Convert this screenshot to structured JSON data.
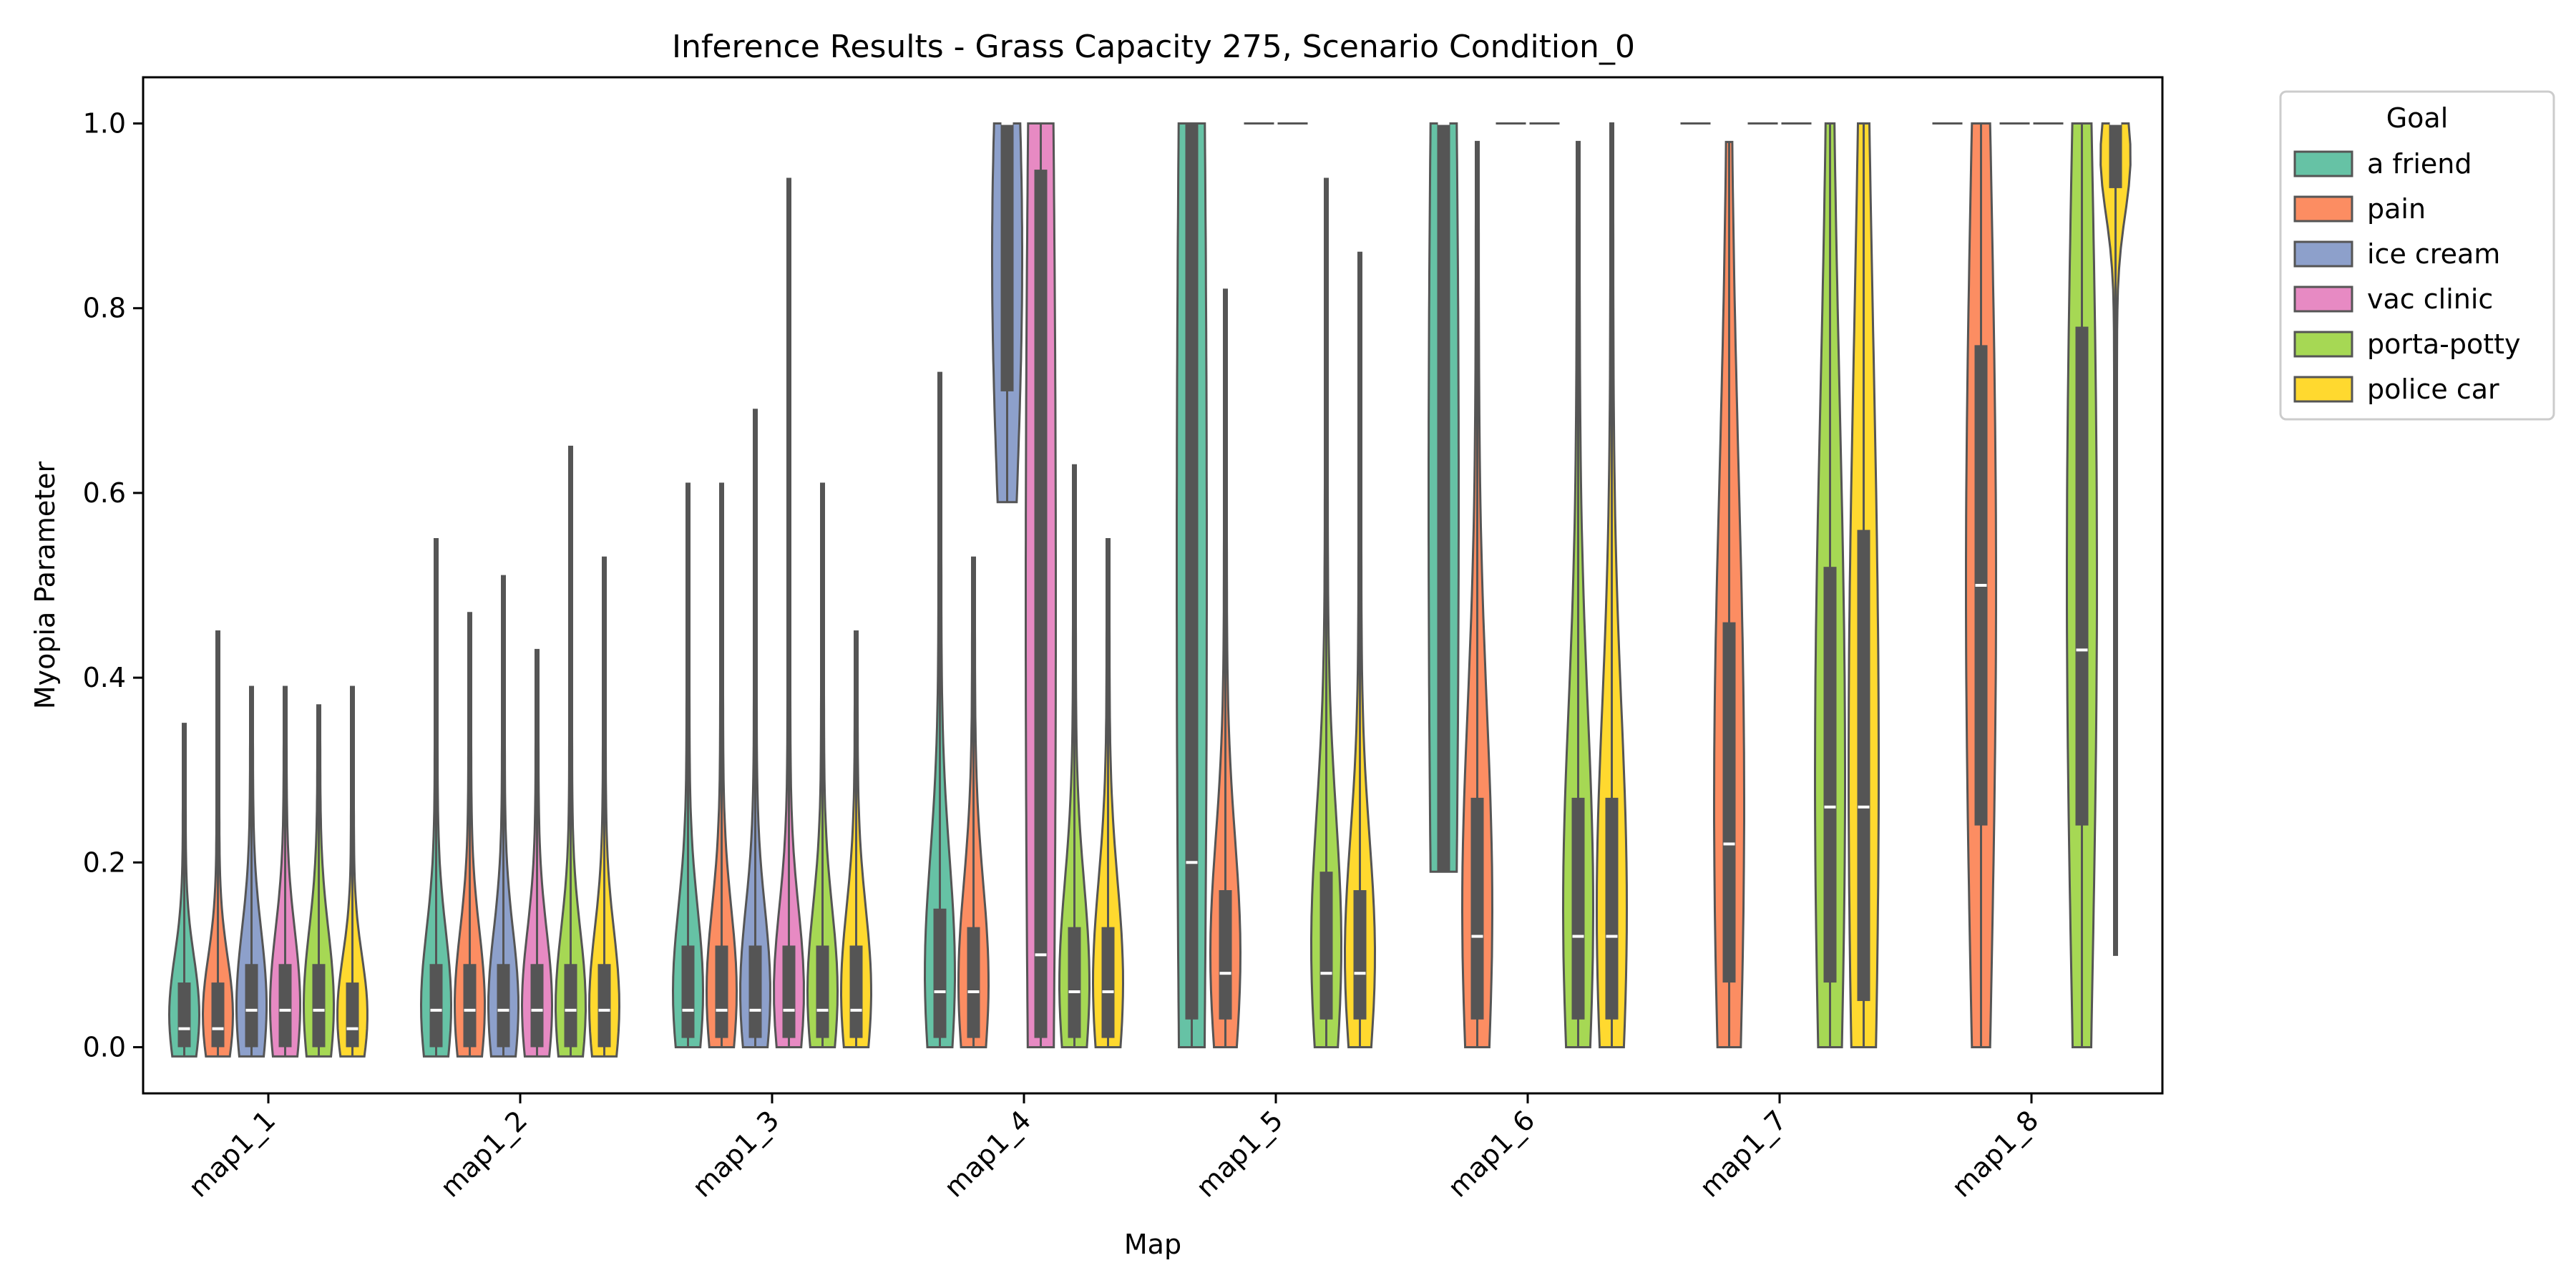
{
  "chart_data": {
    "type": "violin",
    "title": "Inference Results - Grass Capacity 275, Scenario Condition_0",
    "xlabel": "Map",
    "ylabel": "Myopia Parameter",
    "ylim": [
      -0.05,
      1.05
    ],
    "yticks": [
      0.0,
      0.2,
      0.4,
      0.6,
      0.8,
      1.0
    ],
    "yticks_labels": [
      "0.0",
      "0.2",
      "0.4",
      "0.6",
      "0.8",
      "1.0"
    ],
    "categories": [
      "map1_1",
      "map1_2",
      "map1_3",
      "map1_4",
      "map1_5",
      "map1_6",
      "map1_7",
      "map1_8"
    ],
    "legend": {
      "title": "Goal",
      "placement": "outside-right-top",
      "entries": [
        {
          "name": "a friend",
          "color": "#66c2a5"
        },
        {
          "name": "pain",
          "color": "#fc8d62"
        },
        {
          "name": "ice cream",
          "color": "#8da0cb"
        },
        {
          "name": "vac clinic",
          "color": "#e78ac3"
        },
        {
          "name": "porta-potty",
          "color": "#a6d854"
        },
        {
          "name": "police car",
          "color": "#ffd92f"
        }
      ]
    },
    "grid": false,
    "violins": [
      [
        {
          "min": -0.01,
          "q1": 0.0,
          "median": 0.02,
          "q3": 0.07,
          "max": 0.35
        },
        {
          "min": -0.01,
          "q1": 0.0,
          "median": 0.02,
          "q3": 0.07,
          "max": 0.45
        },
        {
          "min": -0.01,
          "q1": 0.0,
          "median": 0.04,
          "q3": 0.09,
          "max": 0.39
        },
        {
          "min": -0.01,
          "q1": 0.0,
          "median": 0.04,
          "q3": 0.09,
          "max": 0.39
        },
        {
          "min": -0.01,
          "q1": 0.0,
          "median": 0.04,
          "q3": 0.09,
          "max": 0.37
        },
        {
          "min": -0.01,
          "q1": 0.0,
          "median": 0.02,
          "q3": 0.07,
          "max": 0.39
        }
      ],
      [
        {
          "min": -0.01,
          "q1": 0.0,
          "median": 0.04,
          "q3": 0.09,
          "max": 0.55
        },
        {
          "min": -0.01,
          "q1": 0.0,
          "median": 0.04,
          "q3": 0.09,
          "max": 0.47
        },
        {
          "min": -0.01,
          "q1": 0.0,
          "median": 0.04,
          "q3": 0.09,
          "max": 0.51
        },
        {
          "min": -0.01,
          "q1": 0.0,
          "median": 0.04,
          "q3": 0.09,
          "max": 0.43
        },
        {
          "min": -0.01,
          "q1": 0.0,
          "median": 0.04,
          "q3": 0.09,
          "max": 0.65
        },
        {
          "min": -0.01,
          "q1": 0.0,
          "median": 0.04,
          "q3": 0.09,
          "max": 0.53
        }
      ],
      [
        {
          "min": 0.0,
          "q1": 0.01,
          "median": 0.04,
          "q3": 0.11,
          "max": 0.61
        },
        {
          "min": 0.0,
          "q1": 0.01,
          "median": 0.04,
          "q3": 0.11,
          "max": 0.61
        },
        {
          "min": 0.0,
          "q1": 0.01,
          "median": 0.04,
          "q3": 0.11,
          "max": 0.69
        },
        {
          "min": 0.0,
          "q1": 0.01,
          "median": 0.04,
          "q3": 0.11,
          "max": 0.94
        },
        {
          "min": 0.0,
          "q1": 0.01,
          "median": 0.04,
          "q3": 0.11,
          "max": 0.61
        },
        {
          "min": 0.0,
          "q1": 0.01,
          "median": 0.04,
          "q3": 0.11,
          "max": 0.45
        }
      ],
      [
        {
          "min": 0.0,
          "q1": 0.01,
          "median": 0.06,
          "q3": 0.15,
          "max": 0.73
        },
        {
          "min": 0.0,
          "q1": 0.01,
          "median": 0.06,
          "q3": 0.13,
          "max": 0.53
        },
        {
          "min": 0.59,
          "q1": 0.71,
          "median": 1.0,
          "q3": 1.0,
          "max": 1.0
        },
        {
          "min": 0.0,
          "q1": 0.01,
          "median": 0.1,
          "q3": 0.95,
          "max": 1.0
        },
        {
          "min": 0.0,
          "q1": 0.01,
          "median": 0.06,
          "q3": 0.13,
          "max": 0.63
        },
        {
          "min": 0.0,
          "q1": 0.01,
          "median": 0.06,
          "q3": 0.13,
          "max": 0.55
        }
      ],
      [
        {
          "min": 0.0,
          "q1": 0.03,
          "median": 0.2,
          "q3": 1.0,
          "max": 1.0
        },
        {
          "min": 0.0,
          "q1": 0.03,
          "median": 0.08,
          "q3": 0.17,
          "max": 0.82
        },
        {
          "min": 1.0,
          "q1": 1.0,
          "median": 1.0,
          "q3": 1.0,
          "max": 1.0
        },
        {
          "min": 1.0,
          "q1": 1.0,
          "median": 1.0,
          "q3": 1.0,
          "max": 1.0
        },
        {
          "min": 0.0,
          "q1": 0.03,
          "median": 0.08,
          "q3": 0.19,
          "max": 0.94
        },
        {
          "min": 0.0,
          "q1": 0.03,
          "median": 0.08,
          "q3": 0.17,
          "max": 0.86
        }
      ],
      [
        {
          "min": 0.19,
          "q1": 0.19,
          "median": 1.0,
          "q3": 1.0,
          "max": 1.0
        },
        {
          "min": 0.0,
          "q1": 0.03,
          "median": 0.12,
          "q3": 0.27,
          "max": 0.98
        },
        {
          "min": 1.0,
          "q1": 1.0,
          "median": 1.0,
          "q3": 1.0,
          "max": 1.0
        },
        {
          "min": 1.0,
          "q1": 1.0,
          "median": 1.0,
          "q3": 1.0,
          "max": 1.0
        },
        {
          "min": 0.0,
          "q1": 0.03,
          "median": 0.12,
          "q3": 0.27,
          "max": 0.98
        },
        {
          "min": 0.0,
          "q1": 0.03,
          "median": 0.12,
          "q3": 0.27,
          "max": 1.0
        }
      ],
      [
        {
          "min": 1.0,
          "q1": 1.0,
          "median": 1.0,
          "q3": 1.0,
          "max": 1.0
        },
        {
          "min": 0.0,
          "q1": 0.07,
          "median": 0.22,
          "q3": 0.46,
          "max": 0.98
        },
        {
          "min": 1.0,
          "q1": 1.0,
          "median": 1.0,
          "q3": 1.0,
          "max": 1.0
        },
        {
          "min": 1.0,
          "q1": 1.0,
          "median": 1.0,
          "q3": 1.0,
          "max": 1.0
        },
        {
          "min": 0.0,
          "q1": 0.07,
          "median": 0.26,
          "q3": 0.52,
          "max": 1.0
        },
        {
          "min": 0.0,
          "q1": 0.05,
          "median": 0.26,
          "q3": 0.56,
          "max": 1.0
        }
      ],
      [
        {
          "min": 1.0,
          "q1": 1.0,
          "median": 1.0,
          "q3": 1.0,
          "max": 1.0
        },
        {
          "min": 0.0,
          "q1": 0.24,
          "median": 0.5,
          "q3": 0.76,
          "max": 1.0
        },
        {
          "min": 1.0,
          "q1": 1.0,
          "median": 1.0,
          "q3": 1.0,
          "max": 1.0
        },
        {
          "min": 1.0,
          "q1": 1.0,
          "median": 1.0,
          "q3": 1.0,
          "max": 1.0
        },
        {
          "min": 0.0,
          "q1": 0.24,
          "median": 0.43,
          "q3": 0.78,
          "max": 1.0
        },
        {
          "min": 0.1,
          "q1": 0.93,
          "median": 1.0,
          "q3": 1.0,
          "max": 1.0
        }
      ]
    ]
  }
}
